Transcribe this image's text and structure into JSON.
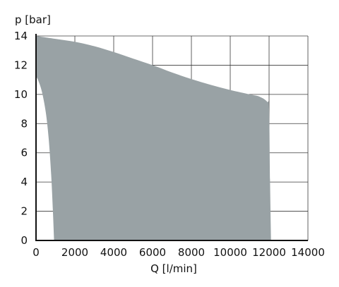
{
  "chart_data": {
    "type": "area",
    "title": "",
    "xlabel": "Q [l/min]",
    "ylabel": "p [bar]",
    "xlim": [
      0,
      14000
    ],
    "ylim": [
      0,
      14
    ],
    "x_ticks": [
      "0",
      "2000",
      "4000",
      "6000",
      "8000",
      "10000",
      "12000",
      "14000"
    ],
    "y_ticks": [
      "0",
      "2",
      "4",
      "6",
      "8",
      "10",
      "12",
      "14"
    ],
    "grid": true,
    "legend": "none",
    "fill_color": "#99a2a5",
    "series": [
      {
        "upper_boundary": [
          {
            "x": 0,
            "y": 14.0
          },
          {
            "x": 1000,
            "y": 13.8
          },
          {
            "x": 2000,
            "y": 13.6
          },
          {
            "x": 3000,
            "y": 13.3
          },
          {
            "x": 4000,
            "y": 12.9
          },
          {
            "x": 5000,
            "y": 12.45
          },
          {
            "x": 6000,
            "y": 12.0
          },
          {
            "x": 7000,
            "y": 11.5
          },
          {
            "x": 8000,
            "y": 11.05
          },
          {
            "x": 9000,
            "y": 10.65
          },
          {
            "x": 10000,
            "y": 10.3
          },
          {
            "x": 11000,
            "y": 10.0
          },
          {
            "x": 11500,
            "y": 9.85
          },
          {
            "x": 11900,
            "y": 9.5
          },
          {
            "x": 12000,
            "y": 9.0
          },
          {
            "x": 12050,
            "y": 4.0
          },
          {
            "x": 12100,
            "y": 0
          }
        ],
        "lower_boundary": [
          {
            "x": 0,
            "y": 11.2
          },
          {
            "x": 100,
            "y": 11.0
          },
          {
            "x": 300,
            "y": 10.2
          },
          {
            "x": 500,
            "y": 8.8
          },
          {
            "x": 650,
            "y": 7.0
          },
          {
            "x": 780,
            "y": 4.5
          },
          {
            "x": 870,
            "y": 2.0
          },
          {
            "x": 930,
            "y": 0
          }
        ]
      }
    ]
  }
}
